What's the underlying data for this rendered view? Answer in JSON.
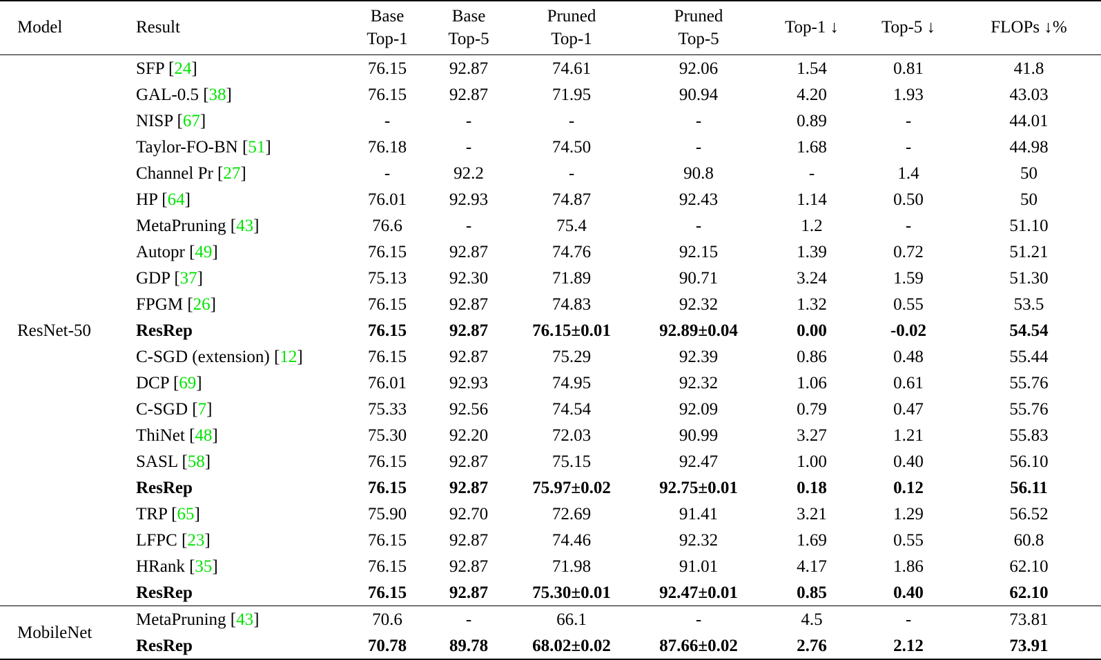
{
  "colors": {
    "citation_green": "#00e400",
    "text": "#000000",
    "background": "#ffffff"
  },
  "table": {
    "header": {
      "model": "Model",
      "result": "Result",
      "base_top1": "Base\nTop-1",
      "base_top5": "Base\nTop-5",
      "pruned_top1": "Pruned\nTop-1",
      "pruned_top5": "Pruned\nTop-5",
      "top1_drop": "Top-1 ↓",
      "top5_drop": "Top-5 ↓",
      "flops_drop": "FLOPs ↓%"
    },
    "sections": [
      {
        "model": "ResNet-50",
        "rows": [
          {
            "method": "SFP",
            "cite": "24",
            "bold": false,
            "values": [
              "76.15",
              "92.87",
              "74.61",
              "92.06",
              "1.54",
              "0.81",
              "41.8"
            ]
          },
          {
            "method": "GAL-0.5",
            "cite": "38",
            "bold": false,
            "values": [
              "76.15",
              "92.87",
              "71.95",
              "90.94",
              "4.20",
              "1.93",
              "43.03"
            ]
          },
          {
            "method": "NISP",
            "cite": "67",
            "bold": false,
            "values": [
              "-",
              "-",
              "-",
              "-",
              "0.89",
              "-",
              "44.01"
            ]
          },
          {
            "method": "Taylor-FO-BN",
            "cite": "51",
            "bold": false,
            "values": [
              "76.18",
              "-",
              "74.50",
              "-",
              "1.68",
              "-",
              "44.98"
            ]
          },
          {
            "method": "Channel Pr",
            "cite": "27",
            "bold": false,
            "values": [
              "-",
              "92.2",
              "-",
              "90.8",
              "-",
              "1.4",
              "50"
            ]
          },
          {
            "method": "HP",
            "cite": "64",
            "bold": false,
            "values": [
              "76.01",
              "92.93",
              "74.87",
              "92.43",
              "1.14",
              "0.50",
              "50"
            ]
          },
          {
            "method": "MetaPruning",
            "cite": "43",
            "bold": false,
            "values": [
              "76.6",
              "-",
              "75.4",
              "-",
              "1.2",
              "-",
              "51.10"
            ]
          },
          {
            "method": "Autopr",
            "cite": "49",
            "bold": false,
            "values": [
              "76.15",
              "92.87",
              "74.76",
              "92.15",
              "1.39",
              "0.72",
              "51.21"
            ]
          },
          {
            "method": "GDP",
            "cite": "37",
            "bold": false,
            "values": [
              "75.13",
              "92.30",
              "71.89",
              "90.71",
              "3.24",
              "1.59",
              "51.30"
            ]
          },
          {
            "method": "FPGM",
            "cite": "26",
            "bold": false,
            "values": [
              "76.15",
              "92.87",
              "74.83",
              "92.32",
              "1.32",
              "0.55",
              "53.5"
            ]
          },
          {
            "method": "ResRep",
            "cite": null,
            "bold": true,
            "values": [
              "76.15",
              "92.87",
              "76.15±0.01",
              "92.89±0.04",
              "0.00",
              "-0.02",
              "54.54"
            ]
          },
          {
            "method": "C-SGD (extension)",
            "cite": "12",
            "bold": false,
            "values": [
              "76.15",
              "92.87",
              "75.29",
              "92.39",
              "0.86",
              "0.48",
              "55.44"
            ]
          },
          {
            "method": "DCP",
            "cite": "69",
            "bold": false,
            "values": [
              "76.01",
              "92.93",
              "74.95",
              "92.32",
              "1.06",
              "0.61",
              "55.76"
            ]
          },
          {
            "method": "C-SGD",
            "cite": "7",
            "bold": false,
            "values": [
              "75.33",
              "92.56",
              "74.54",
              "92.09",
              "0.79",
              "0.47",
              "55.76"
            ]
          },
          {
            "method": "ThiNet",
            "cite": "48",
            "bold": false,
            "values": [
              "75.30",
              "92.20",
              "72.03",
              "90.99",
              "3.27",
              "1.21",
              "55.83"
            ]
          },
          {
            "method": "SASL",
            "cite": "58",
            "bold": false,
            "values": [
              "76.15",
              "92.87",
              "75.15",
              "92.47",
              "1.00",
              "0.40",
              "56.10"
            ]
          },
          {
            "method": "ResRep",
            "cite": null,
            "bold": true,
            "values": [
              "76.15",
              "92.87",
              "75.97±0.02",
              "92.75±0.01",
              "0.18",
              "0.12",
              "56.11"
            ]
          },
          {
            "method": "TRP",
            "cite": "65",
            "bold": false,
            "values": [
              "75.90",
              "92.70",
              "72.69",
              "91.41",
              "3.21",
              "1.29",
              "56.52"
            ]
          },
          {
            "method": "LFPC",
            "cite": "23",
            "bold": false,
            "values": [
              "76.15",
              "92.87",
              "74.46",
              "92.32",
              "1.69",
              "0.55",
              "60.8"
            ]
          },
          {
            "method": "HRank",
            "cite": "35",
            "bold": false,
            "values": [
              "76.15",
              "92.87",
              "71.98",
              "91.01",
              "4.17",
              "1.86",
              "62.10"
            ]
          },
          {
            "method": "ResRep",
            "cite": null,
            "bold": true,
            "values": [
              "76.15",
              "92.87",
              "75.30±0.01",
              "92.47±0.01",
              "0.85",
              "0.40",
              "62.10"
            ]
          }
        ]
      },
      {
        "model": "MobileNet",
        "rows": [
          {
            "method": "MetaPruning",
            "cite": "43",
            "bold": false,
            "values": [
              "70.6",
              "-",
              "66.1",
              "-",
              "4.5",
              "-",
              "73.81"
            ]
          },
          {
            "method": "ResRep",
            "cite": null,
            "bold": true,
            "values": [
              "70.78",
              "89.78",
              "68.02±0.02",
              "87.66±0.02",
              "2.76",
              "2.12",
              "73.91"
            ]
          }
        ]
      }
    ]
  }
}
